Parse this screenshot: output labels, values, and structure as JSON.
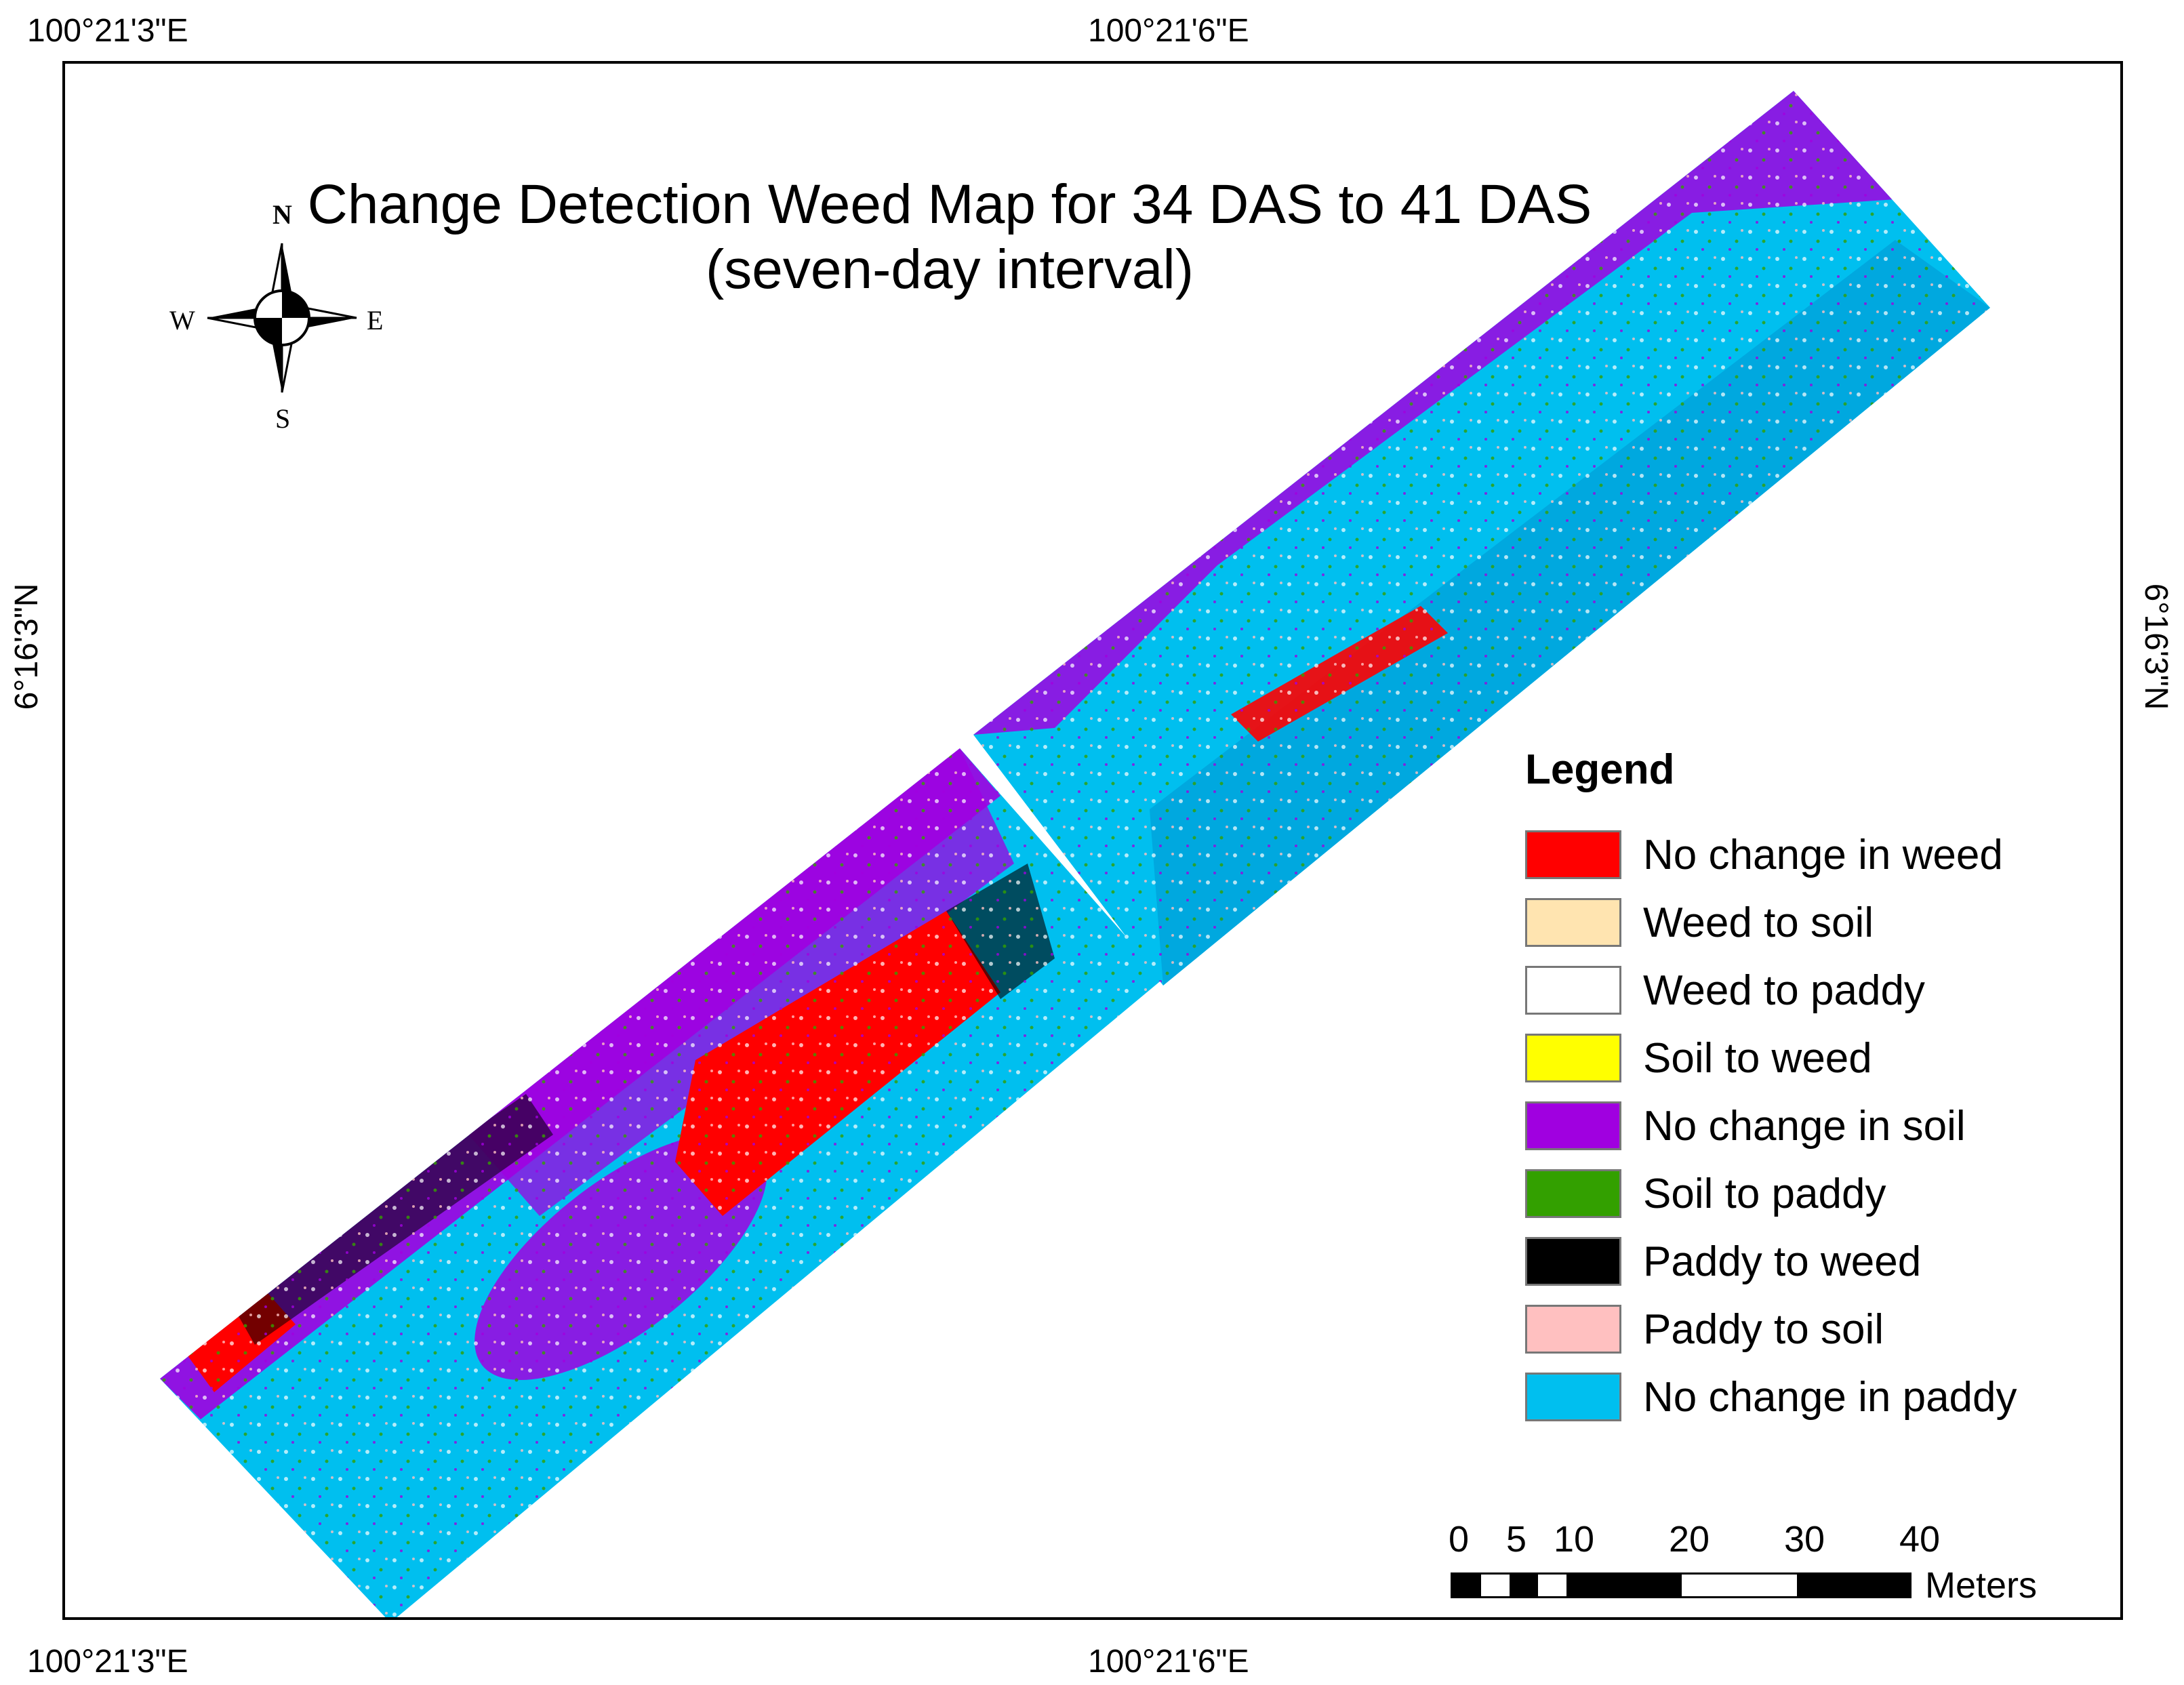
{
  "title": {
    "line1": "Change Detection Weed Map for 34 DAS to 41 DAS",
    "line2": "(seven-day interval)"
  },
  "graticule": {
    "lon_left": "100°21'3\"E",
    "lon_right": "100°21'6\"E",
    "lat": "6°16'3\"N"
  },
  "compass": {
    "n": "N",
    "s": "S",
    "e": "E",
    "w": "W"
  },
  "legend": {
    "title": "Legend",
    "items": [
      {
        "label": "No change in weed",
        "color": "#ff0000"
      },
      {
        "label": "Weed to soil",
        "color": "#ffe4b0"
      },
      {
        "label": "Weed to paddy",
        "color": "#ffffff"
      },
      {
        "label": "Soil to weed",
        "color": "#ffff00"
      },
      {
        "label": "No change in soil",
        "color": "#a000e0"
      },
      {
        "label": "Soil to paddy",
        "color": "#33a000"
      },
      {
        "label": "Paddy to weed",
        "color": "#000000"
      },
      {
        "label": "Paddy to soil",
        "color": "#ffc0c0"
      },
      {
        "label": "No change in paddy",
        "color": "#00bfef"
      }
    ]
  },
  "scale_bar": {
    "ticks": [
      "0",
      "5",
      "10",
      "20",
      "30",
      "40"
    ],
    "unit": "Meters"
  }
}
